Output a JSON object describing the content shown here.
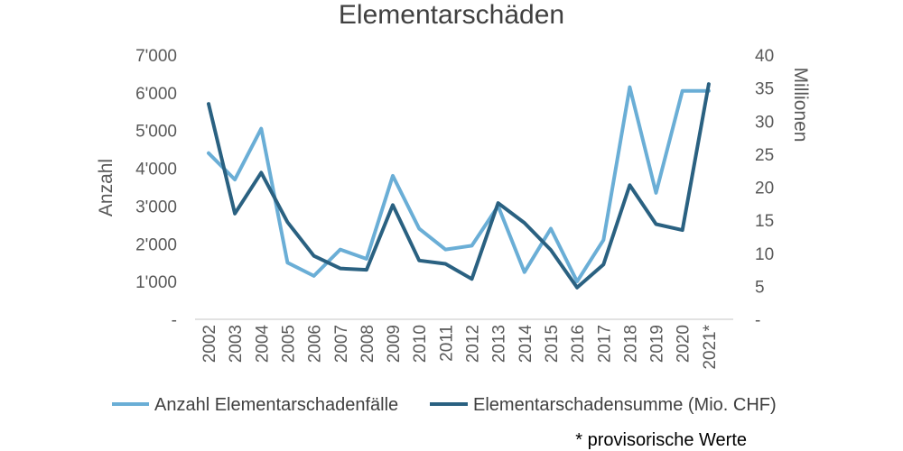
{
  "chart_data": {
    "type": "line",
    "title": "Elementarschäden",
    "categories": [
      "2002",
      "2003",
      "2004",
      "2005",
      "2006",
      "2007",
      "2008",
      "2009",
      "2010",
      "2011",
      "2012",
      "2013",
      "2014",
      "2015",
      "2016",
      "2017",
      "2018",
      "2019",
      "2020",
      "2021*"
    ],
    "ylabel": "Anzahl",
    "y2label": "Millionen",
    "ylim": [
      0,
      7000
    ],
    "y2lim": [
      0,
      40
    ],
    "yticks": [
      "-",
      "1'000",
      "2'000",
      "3'000",
      "4'000",
      "5'000",
      "6'000",
      "7'000"
    ],
    "y2ticks": [
      "-",
      "5",
      "10",
      "15",
      "20",
      "25",
      "30",
      "35",
      "40"
    ],
    "series": [
      {
        "name": "Anzahl Elementarschadenfälle",
        "axis": "left",
        "color": "#6aaed6",
        "values": [
          4400,
          3700,
          5050,
          1500,
          1150,
          1850,
          1600,
          3800,
          2400,
          1850,
          1950,
          3000,
          1250,
          2400,
          1000,
          2100,
          6150,
          3350,
          6050,
          6050
        ]
      },
      {
        "name": "Elementarschadensumme (Mio. CHF)",
        "axis": "right",
        "color": "#2a6181",
        "values": [
          32.6,
          16.0,
          22.2,
          14.7,
          9.6,
          7.7,
          7.5,
          17.3,
          8.9,
          8.4,
          6.1,
          17.6,
          14.6,
          10.5,
          4.8,
          8.3,
          20.3,
          14.4,
          13.5,
          35.6
        ]
      }
    ],
    "grid": false,
    "legend_position": "bottom",
    "footnote": "* provisorische Werte"
  }
}
